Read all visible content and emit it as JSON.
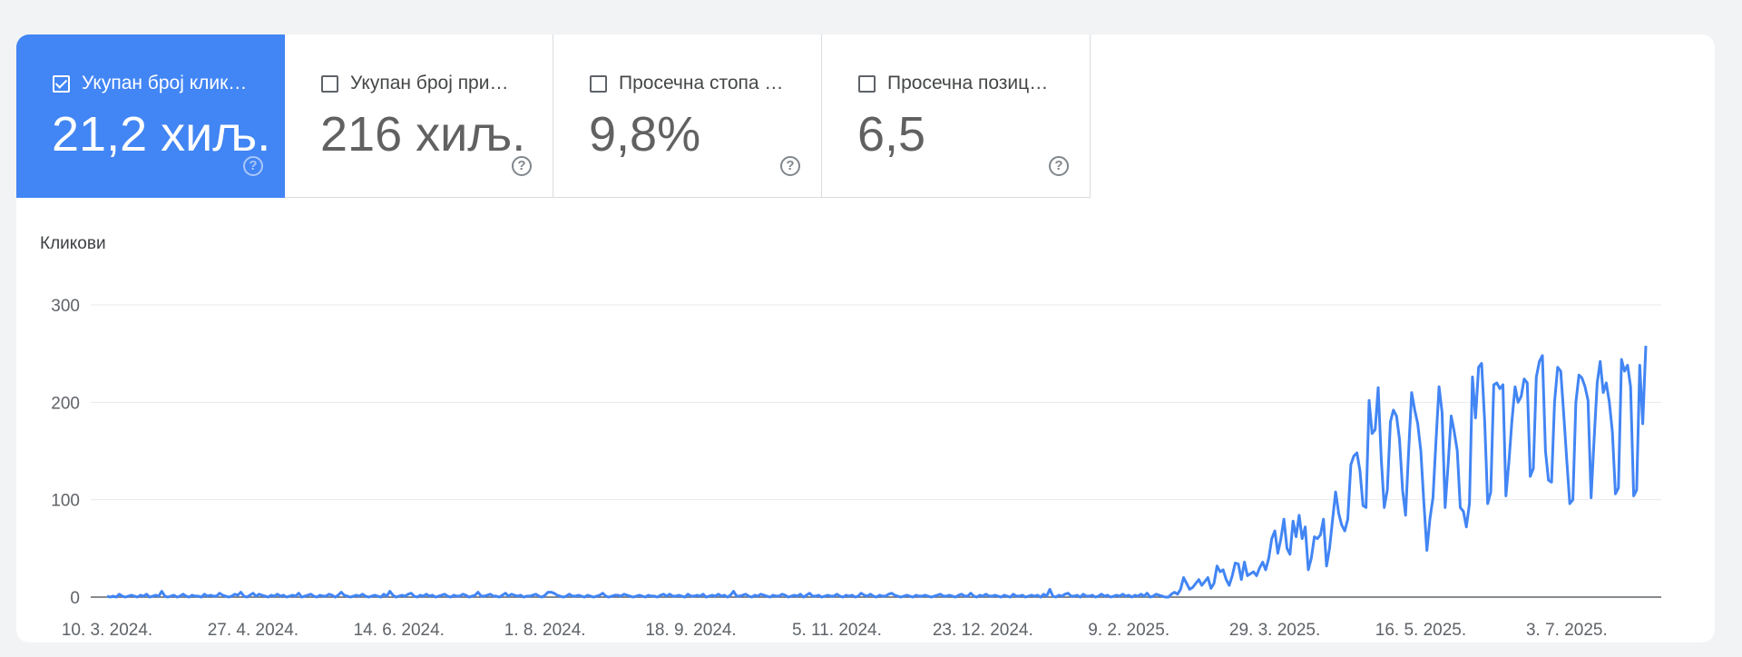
{
  "metrics": [
    {
      "label": "Укупан број клик…",
      "value": "21,2 хиљ.",
      "checked": true,
      "help_icon": "question-circle-icon"
    },
    {
      "label": "Укупан број при…",
      "value": "216 хиљ.",
      "checked": false,
      "help_icon": "question-circle-icon"
    },
    {
      "label": "Просечна стопа …",
      "value": "9,8%",
      "checked": false,
      "help_icon": "question-circle-icon"
    },
    {
      "label": "Просечна позиц…",
      "value": "6,5",
      "checked": false,
      "help_icon": "question-circle-icon"
    }
  ],
  "colors": {
    "accent": "#4285f4",
    "line": "#4285f4",
    "grid": "#e8eaed",
    "axis": "#5f6368"
  },
  "chart_data": {
    "type": "line",
    "ylabel": "Кликови",
    "ylim": [
      0,
      300
    ],
    "yticks": [
      0,
      100,
      200,
      300
    ],
    "grid": true,
    "x_tick_labels": [
      "10. 3. 2024.",
      "27. 4. 2024.",
      "14. 6. 2024.",
      "1. 8. 2024.",
      "18. 9. 2024.",
      "5. 11. 2024.",
      "23. 12. 2024.",
      "9. 2. 2025.",
      "29. 3. 2025.",
      "16. 5. 2025.",
      "3. 7. 2025."
    ],
    "points_per_tick": 48,
    "start_label": "10. 3. 2024.",
    "series": [
      {
        "values": [
          1,
          0,
          1,
          0,
          3,
          1,
          0,
          1,
          2,
          1,
          0,
          2,
          1,
          3,
          0,
          1,
          2,
          1,
          6,
          1,
          0,
          1,
          2,
          0,
          1,
          3,
          1,
          0,
          2,
          1,
          1,
          0,
          3,
          1,
          2,
          1,
          1,
          4,
          2,
          1,
          0,
          1,
          3,
          2,
          5,
          1,
          0,
          2,
          4,
          1,
          3,
          2,
          1,
          0,
          2,
          1,
          3,
          1,
          2,
          0,
          1,
          2,
          1,
          4,
          0,
          1,
          2,
          3,
          1,
          0,
          2,
          1,
          1,
          3,
          2,
          0,
          2,
          5,
          2,
          1,
          0,
          1,
          2,
          1,
          3,
          1,
          0,
          1,
          2,
          1,
          0,
          3,
          1,
          6,
          2,
          0,
          1,
          2,
          1,
          3,
          4,
          1,
          0,
          2,
          1,
          3,
          1,
          2,
          0,
          1,
          2,
          3,
          1,
          0,
          2,
          1,
          1,
          3,
          2,
          0,
          1,
          2,
          5,
          1,
          1,
          2,
          3,
          1,
          1,
          0,
          2,
          4,
          1,
          3,
          2,
          1,
          2,
          0,
          1,
          1,
          2,
          3,
          1,
          0,
          2,
          5,
          5,
          4,
          2,
          1,
          0,
          1,
          3,
          1,
          1,
          2,
          1,
          0,
          2,
          1,
          0,
          1,
          2,
          4,
          1,
          0,
          1,
          2,
          2,
          1,
          3,
          2,
          1,
          0,
          1,
          2,
          1,
          0,
          2,
          1,
          1,
          0,
          2,
          3,
          1,
          3,
          1,
          1,
          2,
          1,
          0,
          3,
          1,
          1,
          2,
          1,
          3,
          0,
          1,
          2,
          1,
          3,
          1,
          2,
          0,
          2,
          6,
          1,
          1,
          2,
          3,
          1,
          0,
          2,
          1,
          3,
          2,
          1,
          0,
          2,
          1,
          1,
          3,
          2,
          0,
          1,
          2,
          1,
          3,
          0,
          2,
          4,
          1,
          1,
          2,
          0,
          1,
          2,
          1,
          1,
          3,
          1,
          0,
          2,
          1,
          2,
          0,
          1,
          4,
          2,
          1,
          3,
          1,
          0,
          2,
          1,
          1,
          3,
          4,
          2,
          1,
          0,
          1,
          2,
          1,
          0,
          2,
          1,
          1,
          2,
          1,
          0,
          1,
          2,
          3,
          1,
          1,
          2,
          1,
          0,
          2,
          3,
          1,
          1,
          4,
          1,
          0,
          2,
          1,
          3,
          1,
          1,
          2,
          1,
          0,
          2,
          1,
          0,
          3,
          1,
          1,
          2,
          0,
          1,
          2,
          1,
          2,
          0,
          3,
          1,
          8,
          1,
          0,
          2,
          1,
          3,
          4,
          1,
          1,
          2,
          0,
          3,
          1,
          1,
          2,
          0,
          1,
          3,
          1,
          2,
          0,
          1,
          2,
          1,
          3,
          1,
          2,
          0,
          2,
          1,
          3,
          1,
          4,
          0,
          1,
          3,
          2,
          1,
          0,
          0,
          3,
          5,
          3,
          8,
          20,
          14,
          8,
          10,
          14,
          18,
          12,
          16,
          20,
          9,
          14,
          32,
          26,
          28,
          18,
          12,
          22,
          35,
          34,
          18,
          36,
          22,
          24,
          26,
          22,
          30,
          36,
          28,
          40,
          60,
          68,
          45,
          60,
          80,
          50,
          44,
          78,
          62,
          84,
          60,
          72,
          28,
          40,
          62,
          60,
          64,
          80,
          32,
          50,
          80,
          108,
          86,
          74,
          68,
          80,
          136,
          145,
          148,
          130,
          94,
          92,
          202,
          168,
          172,
          215,
          142,
          92,
          110,
          180,
          192,
          186,
          162,
          110,
          84,
          150,
          210,
          192,
          178,
          150,
          98,
          48,
          80,
          102,
          160,
          216,
          190,
          92,
          136,
          186,
          170,
          150,
          92,
          88,
          72,
          96,
          226,
          184,
          236,
          240,
          180,
          96,
          108,
          218,
          220,
          214,
          218,
          104,
          140,
          182,
          216,
          200,
          206,
          224,
          220,
          124,
          132,
          226,
          242,
          248,
          150,
          120,
          118,
          200,
          236,
          232,
          188,
          140,
          96,
          100,
          200,
          228,
          225,
          216,
          202,
          102,
          162,
          220,
          242,
          210,
          220,
          200,
          170,
          106,
          112,
          244,
          232,
          238,
          216,
          104,
          110,
          238,
          178,
          258
        ]
      }
    ]
  }
}
